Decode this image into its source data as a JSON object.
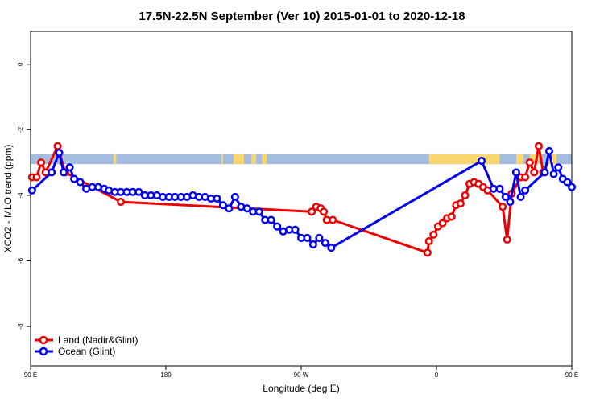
{
  "chart_data": {
    "type": "line",
    "title": "17.5N-22.5N September (Ver 10)   2015-01-01 to 2020-12-18",
    "xlabel": "Longitude (deg E)",
    "ylabel": "XCO2 - MLO trend (ppm)",
    "xlim": [
      90,
      450
    ],
    "ylim": [
      -9.2,
      1.0
    ],
    "x_ticks": [
      {
        "value": 90,
        "label": "90 E"
      },
      {
        "value": 180,
        "label": "180"
      },
      {
        "value": 270,
        "label": "90 W"
      },
      {
        "value": 360,
        "label": "0"
      },
      {
        "value": 450,
        "label": "90 E"
      }
    ],
    "y_ticks": [
      {
        "value": 0,
        "label": "0"
      },
      {
        "value": -2,
        "label": "-2"
      },
      {
        "value": -4,
        "label": "-4"
      },
      {
        "value": -6,
        "label": "-6"
      },
      {
        "value": -8,
        "label": "-8"
      }
    ],
    "grid": false,
    "legend_position": "bottom-left",
    "landmask_band": {
      "y_range": [
        -3.05,
        -2.75
      ],
      "ocean_color": "#a4bde0",
      "land_color": "#f8d670",
      "land_segments": [
        [
          145,
          147
        ],
        [
          217,
          218
        ],
        [
          225,
          232
        ],
        [
          237,
          240
        ],
        [
          244,
          247
        ],
        [
          355,
          402
        ],
        [
          413,
          418
        ],
        [
          422,
          428
        ],
        [
          435,
          440
        ]
      ]
    },
    "series": [
      {
        "name": "Land (Nadir&Glint)",
        "color": "#ee0000",
        "points": [
          [
            91,
            -3.45
          ],
          [
            94,
            -3.45
          ],
          [
            97,
            -3.0
          ],
          [
            100,
            -3.3
          ],
          [
            108,
            -2.5
          ],
          [
            113,
            -3.3
          ],
          [
            150,
            -4.2
          ],
          [
            277,
            -4.5
          ],
          [
            280,
            -4.35
          ],
          [
            283,
            -4.4
          ],
          [
            285,
            -4.5
          ],
          [
            287,
            -4.75
          ],
          [
            291,
            -4.75
          ],
          [
            354,
            -5.75
          ],
          [
            355,
            -5.4
          ],
          [
            358,
            -5.2
          ],
          [
            361,
            -4.95
          ],
          [
            364,
            -4.85
          ],
          [
            367,
            -4.7
          ],
          [
            370,
            -4.65
          ],
          [
            373,
            -4.3
          ],
          [
            376,
            -4.25
          ],
          [
            379,
            -4.0
          ],
          [
            382,
            -3.65
          ],
          [
            385,
            -3.6
          ],
          [
            388,
            -3.65
          ],
          [
            391,
            -3.75
          ],
          [
            394,
            -3.85
          ],
          [
            404,
            -4.35
          ],
          [
            407,
            -5.35
          ],
          [
            410,
            -3.95
          ],
          [
            416,
            -3.45
          ],
          [
            419,
            -3.45
          ],
          [
            422,
            -3.0
          ],
          [
            425,
            -3.3
          ],
          [
            428,
            -2.5
          ],
          [
            431,
            -3.3
          ]
        ]
      },
      {
        "name": "Ocean (Glint)",
        "color": "#0000ee",
        "points": [
          [
            91,
            -3.85
          ],
          [
            104,
            -3.3
          ],
          [
            109,
            -2.7
          ],
          [
            112,
            -3.3
          ],
          [
            116,
            -3.15
          ],
          [
            119,
            -3.5
          ],
          [
            123,
            -3.6
          ],
          [
            127,
            -3.8
          ],
          [
            131,
            -3.75
          ],
          [
            135,
            -3.75
          ],
          [
            139,
            -3.8
          ],
          [
            142,
            -3.85
          ],
          [
            146,
            -3.9
          ],
          [
            150,
            -3.9
          ],
          [
            154,
            -3.9
          ],
          [
            158,
            -3.9
          ],
          [
            162,
            -3.9
          ],
          [
            166,
            -4.0
          ],
          [
            170,
            -4.0
          ],
          [
            174,
            -4.0
          ],
          [
            178,
            -4.05
          ],
          [
            182,
            -4.05
          ],
          [
            186,
            -4.05
          ],
          [
            190,
            -4.05
          ],
          [
            194,
            -4.05
          ],
          [
            198,
            -4.0
          ],
          [
            202,
            -4.05
          ],
          [
            206,
            -4.05
          ],
          [
            210,
            -4.1
          ],
          [
            214,
            -4.1
          ],
          [
            218,
            -4.3
          ],
          [
            222,
            -4.4
          ],
          [
            226,
            -4.05
          ],
          [
            230,
            -4.35
          ],
          [
            234,
            -4.4
          ],
          [
            238,
            -4.5
          ],
          [
            242,
            -4.5
          ],
          [
            246,
            -4.75
          ],
          [
            250,
            -4.75
          ],
          [
            254,
            -4.95
          ],
          [
            258,
            -5.1
          ],
          [
            262,
            -5.05
          ],
          [
            266,
            -5.05
          ],
          [
            270,
            -5.3
          ],
          [
            274,
            -5.3
          ],
          [
            278,
            -5.5
          ],
          [
            282,
            -5.3
          ],
          [
            286,
            -5.45
          ],
          [
            290,
            -5.6
          ],
          [
            390,
            -2.95
          ],
          [
            398,
            -3.8
          ],
          [
            402,
            -3.8
          ],
          [
            406,
            -4.05
          ],
          [
            409,
            -4.2
          ],
          [
            413,
            -3.3
          ],
          [
            416,
            -4.05
          ],
          [
            419,
            -3.85
          ],
          [
            432,
            -3.3
          ],
          [
            435,
            -2.65
          ],
          [
            438,
            -3.35
          ],
          [
            441,
            -3.15
          ],
          [
            444,
            -3.5
          ],
          [
            447,
            -3.6
          ],
          [
            450,
            -3.75
          ],
          [
            454,
            -3.7
          ],
          [
            458,
            -3.75
          ],
          [
            462,
            -3.75
          ],
          [
            466,
            -3.8
          ],
          [
            470,
            -3.85
          ],
          [
            474,
            -3.9
          ],
          [
            478,
            -3.9
          ],
          [
            482,
            -3.9
          ],
          [
            486,
            -3.9
          ]
        ]
      }
    ]
  }
}
